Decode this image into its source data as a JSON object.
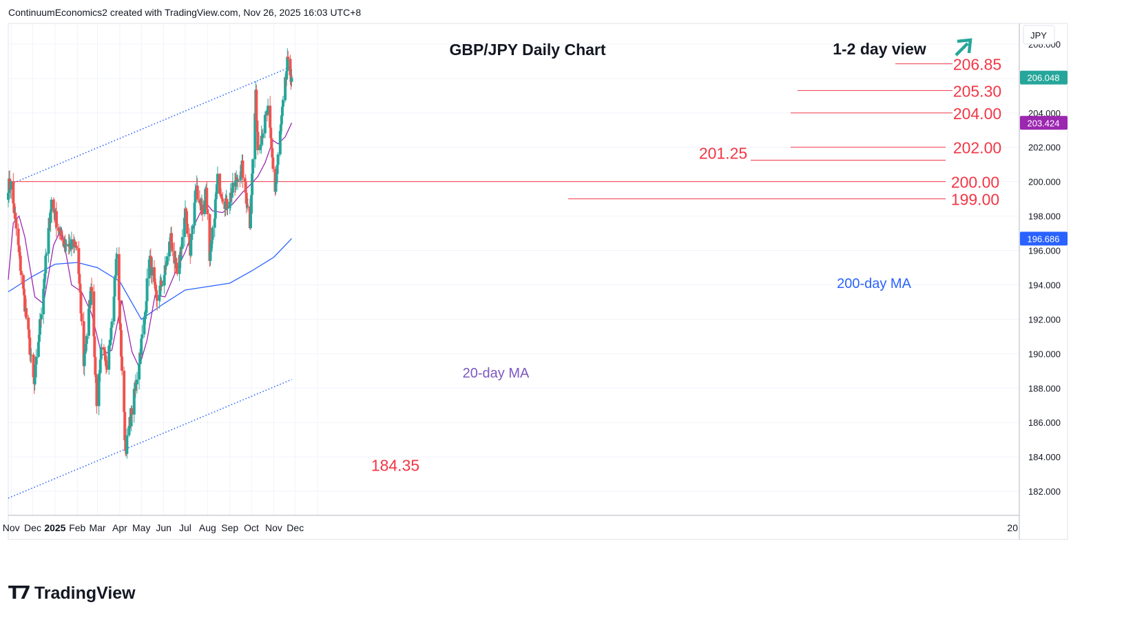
{
  "header": {
    "attribution": "ContinuumEconomics2 created with TradingView.com, Nov 26, 2025 16:03 UTC+8"
  },
  "brand": {
    "name": "TradingView"
  },
  "chart_data": {
    "type": "candlestick",
    "title": "GBP/JPY Daily Chart",
    "subtitle": "1-2 day view",
    "outlook_icon": "arrow-up-right-icon",
    "currency_label": "JPY",
    "y_range": [
      180.6,
      209.2
    ],
    "y_ticks": [
      "182.000",
      "184.000",
      "186.000",
      "188.000",
      "190.000",
      "192.000",
      "194.000",
      "196.000",
      "198.000",
      "200.000",
      "202.000",
      "204.000",
      "206.000",
      "208.000"
    ],
    "x_labels": [
      "Nov",
      "Dec",
      "2025",
      "Feb",
      "Mar",
      "Apr",
      "May",
      "Jun",
      "Jul",
      "Aug",
      "Sep",
      "Oct",
      "Nov",
      "Dec",
      "20"
    ],
    "price_tags": [
      {
        "label": "206.048",
        "value": 206.05,
        "color": "#26a69a"
      },
      {
        "label": "203.424",
        "value": 203.42,
        "color": "#9c27b0"
      },
      {
        "label": "196.686",
        "value": 196.69,
        "color": "#2962ff"
      }
    ],
    "levels": [
      {
        "label": "206.85",
        "value": 206.85
      },
      {
        "label": "205.30",
        "value": 205.3
      },
      {
        "label": "204.00",
        "value": 204.0
      },
      {
        "label": "202.00",
        "value": 202.0
      },
      {
        "label": "201.25",
        "value": 201.25
      },
      {
        "label": "200.00",
        "value": 200.0
      },
      {
        "label": "199.00",
        "value": 199.0
      },
      {
        "label": "184.35",
        "value": 184.35
      }
    ],
    "annotations": [
      {
        "text": "20-day MA",
        "color": "#7e57c2"
      },
      {
        "text": "200-day MA",
        "color": "#2962ff"
      }
    ],
    "channel": {
      "upper": [
        {
          "x": "2024-10-28",
          "y": 199.8
        },
        {
          "x": "2025-11-26",
          "y": 206.7
        }
      ],
      "lower": [
        {
          "x": "2024-10-28",
          "y": 181.6
        },
        {
          "x": "2025-11-26",
          "y": 188.5
        }
      ]
    },
    "key_points": [
      {
        "x": "2024-11-01",
        "y": 199.8
      },
      {
        "x": "2024-12-03",
        "y": 188.1
      },
      {
        "x": "2024-12-27",
        "y": 198.9
      },
      {
        "x": "2025-01-10",
        "y": 196.6
      },
      {
        "x": "2025-02-01",
        "y": 196.1
      },
      {
        "x": "2025-02-10",
        "y": 189.5
      },
      {
        "x": "2025-02-21",
        "y": 194.0
      },
      {
        "x": "2025-02-28",
        "y": 187.2
      },
      {
        "x": "2025-03-07",
        "y": 190.7
      },
      {
        "x": "2025-03-14",
        "y": 188.7
      },
      {
        "x": "2025-03-28",
        "y": 195.8
      },
      {
        "x": "2025-04-09",
        "y": 184.35
      },
      {
        "x": "2025-04-22",
        "y": 187.8
      },
      {
        "x": "2025-05-06",
        "y": 192.2
      },
      {
        "x": "2025-05-12",
        "y": 195.8
      },
      {
        "x": "2025-05-22",
        "y": 193.0
      },
      {
        "x": "2025-06-03",
        "y": 194.8
      },
      {
        "x": "2025-06-11",
        "y": 196.8
      },
      {
        "x": "2025-06-20",
        "y": 194.3
      },
      {
        "x": "2025-07-01",
        "y": 198.2
      },
      {
        "x": "2025-07-08",
        "y": 196.0
      },
      {
        "x": "2025-07-16",
        "y": 199.7
      },
      {
        "x": "2025-07-25",
        "y": 198.3
      },
      {
        "x": "2025-07-30",
        "y": 199.7
      },
      {
        "x": "2025-08-04",
        "y": 195.1
      },
      {
        "x": "2025-08-15",
        "y": 200.1
      },
      {
        "x": "2025-08-27",
        "y": 198.6
      },
      {
        "x": "2025-09-18",
        "y": 200.8
      },
      {
        "x": "2025-09-29",
        "y": 197.6
      },
      {
        "x": "2025-10-07",
        "y": 204.9
      },
      {
        "x": "2025-10-10",
        "y": 202.0
      },
      {
        "x": "2025-10-24",
        "y": 204.1
      },
      {
        "x": "2025-11-03",
        "y": 199.5
      },
      {
        "x": "2025-11-10",
        "y": 202.8
      },
      {
        "x": "2025-11-20",
        "y": 206.85
      },
      {
        "x": "2025-11-26",
        "y": 206.05
      }
    ],
    "ma20_points": [
      {
        "x": "2024-10-28",
        "y": 194.3
      },
      {
        "x": "2024-11-04",
        "y": 197.6
      },
      {
        "x": "2024-11-12",
        "y": 198.0
      },
      {
        "x": "2024-11-20",
        "y": 196.8
      },
      {
        "x": "2024-12-04",
        "y": 193.3
      },
      {
        "x": "2024-12-16",
        "y": 192.9
      },
      {
        "x": "2024-12-30",
        "y": 196.3
      },
      {
        "x": "2025-01-10",
        "y": 197.3
      },
      {
        "x": "2025-01-24",
        "y": 194.0
      },
      {
        "x": "2025-02-07",
        "y": 193.6
      },
      {
        "x": "2025-02-21",
        "y": 192.3
      },
      {
        "x": "2025-03-07",
        "y": 189.9
      },
      {
        "x": "2025-03-21",
        "y": 190.2
      },
      {
        "x": "2025-04-04",
        "y": 193.1
      },
      {
        "x": "2025-04-18",
        "y": 190.1
      },
      {
        "x": "2025-04-28",
        "y": 189.2
      },
      {
        "x": "2025-05-09",
        "y": 190.8
      },
      {
        "x": "2025-05-20",
        "y": 193.4
      },
      {
        "x": "2025-06-03",
        "y": 193.3
      },
      {
        "x": "2025-06-17",
        "y": 194.7
      },
      {
        "x": "2025-07-01",
        "y": 195.9
      },
      {
        "x": "2025-07-15",
        "y": 197.6
      },
      {
        "x": "2025-07-29",
        "y": 198.8
      },
      {
        "x": "2025-08-08",
        "y": 198.3
      },
      {
        "x": "2025-08-22",
        "y": 198.2
      },
      {
        "x": "2025-09-05",
        "y": 198.7
      },
      {
        "x": "2025-09-19",
        "y": 199.4
      },
      {
        "x": "2025-09-29",
        "y": 199.8
      },
      {
        "x": "2025-10-10",
        "y": 200.3
      },
      {
        "x": "2025-10-20",
        "y": 201.1
      },
      {
        "x": "2025-10-31",
        "y": 202.4
      },
      {
        "x": "2025-11-07",
        "y": 202.2
      },
      {
        "x": "2025-11-17",
        "y": 202.6
      },
      {
        "x": "2025-11-26",
        "y": 203.42
      }
    ],
    "ma200_points": [
      {
        "x": "2024-10-28",
        "y": 193.6
      },
      {
        "x": "2024-12-01",
        "y": 194.5
      },
      {
        "x": "2025-01-01",
        "y": 195.2
      },
      {
        "x": "2025-02-01",
        "y": 195.3
      },
      {
        "x": "2025-03-01",
        "y": 195.0
      },
      {
        "x": "2025-04-01",
        "y": 194.2
      },
      {
        "x": "2025-05-01",
        "y": 192.0
      },
      {
        "x": "2025-06-01",
        "y": 192.9
      },
      {
        "x": "2025-07-01",
        "y": 193.7
      },
      {
        "x": "2025-08-01",
        "y": 193.9
      },
      {
        "x": "2025-09-01",
        "y": 194.1
      },
      {
        "x": "2025-10-01",
        "y": 194.8
      },
      {
        "x": "2025-11-01",
        "y": 195.6
      },
      {
        "x": "2025-11-26",
        "y": 196.69
      }
    ]
  }
}
